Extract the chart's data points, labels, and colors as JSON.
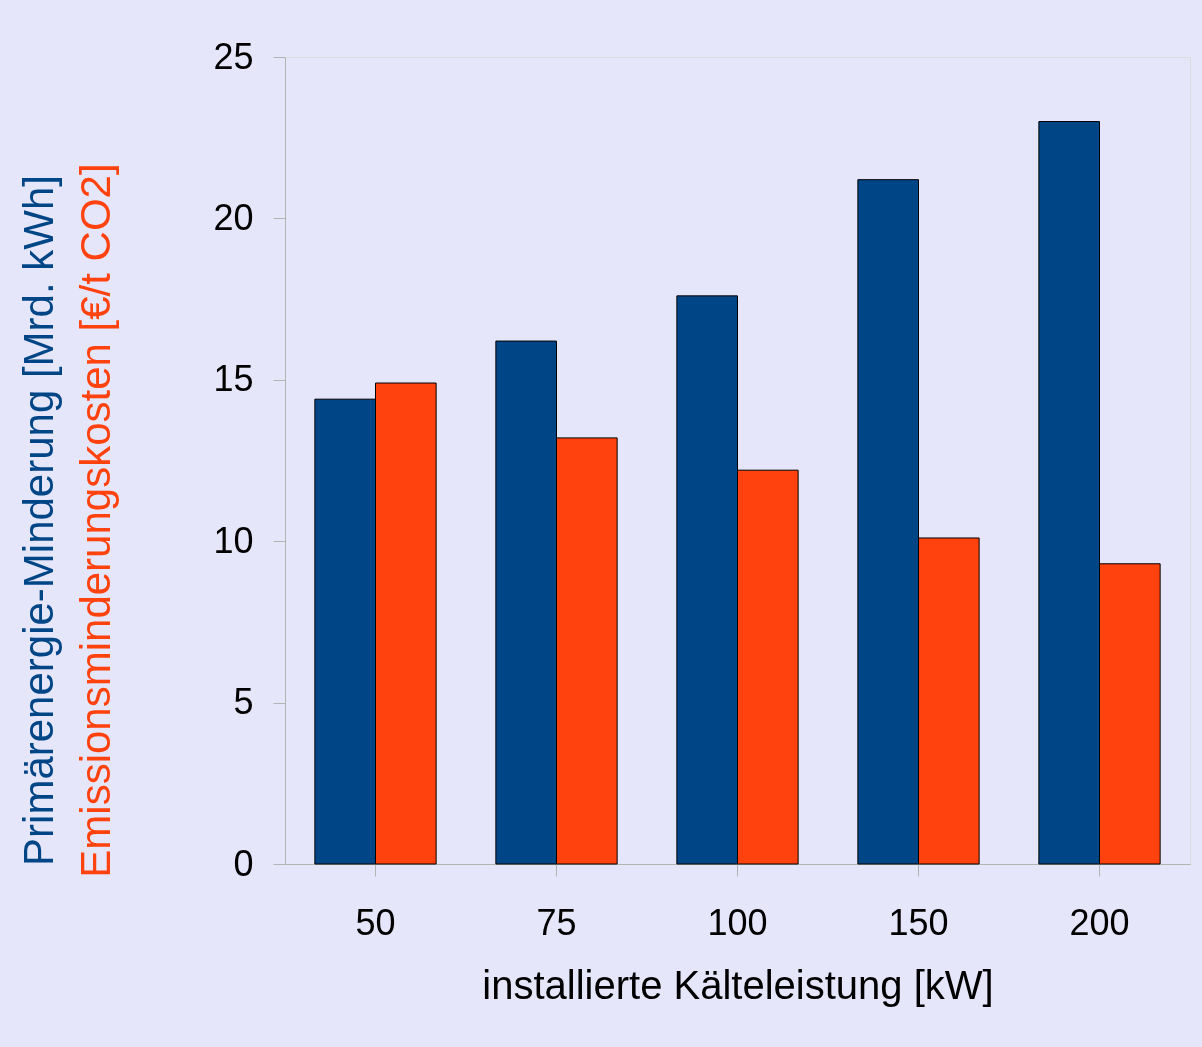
{
  "chart_data": {
    "type": "bar",
    "xlabel": "installierte Kälteleistung [kW]",
    "categories": [
      "50",
      "75",
      "100",
      "150",
      "200"
    ],
    "series": [
      {
        "name": "Primärenergie-Minderung [Mrd. kWh]",
        "color": "#004586",
        "values": [
          14.4,
          16.2,
          17.6,
          21.2,
          23.0
        ]
      },
      {
        "name": "Emissionsminderungskosten [€/t CO2]",
        "color": "#ff420e",
        "values": [
          14.9,
          13.2,
          12.2,
          10.1,
          9.3
        ]
      }
    ],
    "ylim": [
      0,
      25
    ],
    "yticks": [
      0,
      5,
      10,
      15,
      20,
      25
    ],
    "grid": false,
    "legend": false
  }
}
